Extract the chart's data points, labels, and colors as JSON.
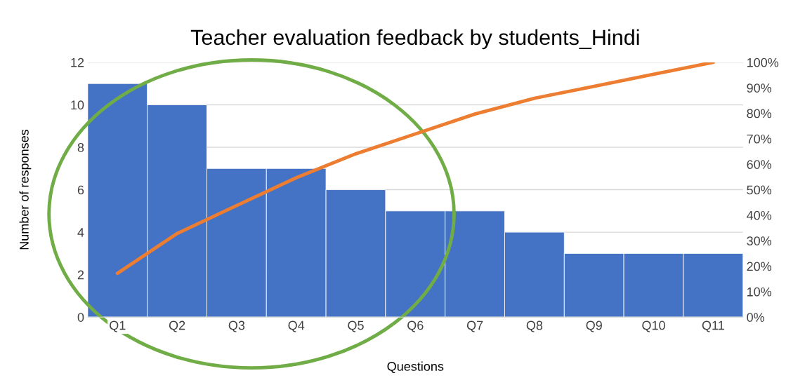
{
  "chart_data": {
    "type": "bar",
    "title": "Teacher evaluation feedback by students_Hindi",
    "xlabel": "Questions",
    "ylabel": "Number of responses",
    "categories": [
      "Q1",
      "Q2",
      "Q3",
      "Q4",
      "Q5",
      "Q6",
      "Q7",
      "Q8",
      "Q9",
      "Q10",
      "Q11"
    ],
    "series": [
      {
        "type": "bar",
        "color": "#4472c4",
        "values": [
          11,
          10,
          7,
          7,
          6,
          5,
          5,
          4,
          3,
          3,
          3
        ]
      },
      {
        "type": "line",
        "axis": "y2",
        "color": "#ed7d31",
        "values": [
          17.2,
          32.8,
          43.8,
          54.7,
          64.1,
          71.9,
          79.7,
          85.9,
          90.6,
          95.3,
          100
        ]
      }
    ],
    "ylim": [
      0,
      12
    ],
    "yticks": [
      0,
      2,
      4,
      6,
      8,
      10,
      12
    ],
    "y2lim": [
      0,
      100
    ],
    "y2ticks": [
      {
        "value": 0,
        "label": "0%"
      },
      {
        "value": 10,
        "label": "10%"
      },
      {
        "value": 20,
        "label": "20%"
      },
      {
        "value": 30,
        "label": "30%"
      },
      {
        "value": 40,
        "label": "40%"
      },
      {
        "value": 50,
        "label": "50%"
      },
      {
        "value": 60,
        "label": "60%"
      },
      {
        "value": 70,
        "label": "70%"
      },
      {
        "value": 80,
        "label": "80%"
      },
      {
        "value": 90,
        "label": "90%"
      },
      {
        "value": 100,
        "label": "100%"
      }
    ],
    "grid": "y",
    "legend": false,
    "marker": "none",
    "line_style": "solid"
  }
}
